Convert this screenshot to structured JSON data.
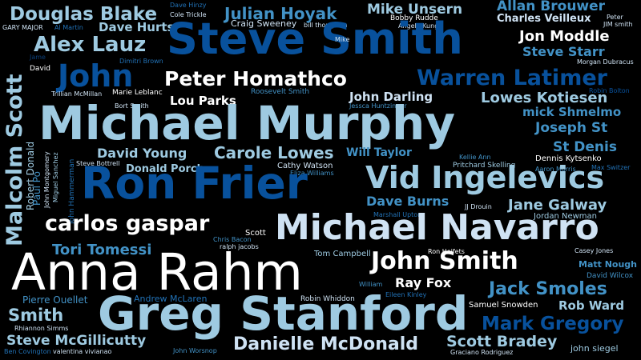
{
  "words": {
    "douglas_blake": "Douglas Blake",
    "dave_hinzy": "Dave Hinzy",
    "cole_trickle": "Cole Trickle",
    "julian_hoyak": "Julian Hoyak",
    "mike_unsern": "Mike Unsern",
    "allan_brouwer": "Allan Brouwer",
    "charles_veilleux": "Charles Veilleux",
    "peter": "Peter",
    "jim_smith": "JIM smith",
    "gary_major": "GARY MAJOR",
    "al_martin": "Al Martin",
    "dave_hurts": "Dave Hurts",
    "craig_sweeney": "Craig Sweeney",
    "bill_thompson": "bill thompson",
    "bobby_rudde": "Bobby Rudde",
    "angela_kung": "Angela Kung",
    "steve_smith": "Steve Smith",
    "jon_moddle": "Jon Moddle",
    "mike": "Mike",
    "alex_lauz": "Alex Lauz",
    "steve_starr": "Steve Starr",
    "morgan_dubracus": "Morgan Dubracus",
    "jame": "Jame",
    "dimitri_brown": "Dimitri Brown",
    "david": "David",
    "john": "John",
    "peter_homathco": "Peter Homathco",
    "warren_latimer": "Warren Latimer",
    "malcolm_scott": "Malcolm Scott",
    "trillian_mcmillan": "Trillian McMillan",
    "marie_leblanc": "Marie Leblanc",
    "roosevelt_smith": "Roosevelt Smith",
    "robin_bolton": "Robin Bolton",
    "lou_parks": "Lou Parks",
    "john_darling": "John Darling",
    "jessca_huntzinger": "Jessca Huntzinger",
    "lowes_kotiesen": "Lowes Kotiesen",
    "bort_smith": "Bort Smith",
    "mick_shmelmo": "mick Shmelmo",
    "michael_murphy": "Michael Murphy",
    "joseph_st": "Joseph St",
    "st_denis": "St Denis",
    "david_young": "David Young",
    "carole_lowes": "Carole Lowes",
    "will_taylor": "Will Taylor",
    "kellie_ann": "Kellie Ann",
    "dennis_kytsenko": "Dennis Kytsenko",
    "robert_donald": "Robert Donald",
    "john_montgomery": "John Montgomery",
    "miguel_sanchez": "Miguel Sanchez",
    "steve_bottrell": "Steve Bottrell",
    "donald_porch": "Donald Porch",
    "cathy_watson": "Cathy Watson",
    "pritchard_skelling": "Pritchard Skelling",
    "aaron_morris": "Aaron Morris",
    "max_switzer": "Max Switzer",
    "eliza_williams": "Eliza Williams",
    "paul_po": "Paul Po",
    "john_hammerman": "John Hammerman",
    "ron_frier": "Ron Frier",
    "vid_ingelevics": "Vid Ingelevics",
    "dave_burns": "Dave Burns",
    "jj_drouin": "JJ Drouin",
    "jane_galway": "Jane Galway",
    "marshall_upton": "Marshall Upton",
    "jordan_newman": "Jordan Newman",
    "carlos_gaspar": "carlos gaspar",
    "scott": "Scott",
    "chris_bacon": "Chris Bacon",
    "ralph_jacobs": "ralph jacobs",
    "michael_navarro": "Michael Navarro",
    "tori_tomessi": "Tori Tomessi",
    "tom_campbell": "Tom Campbell",
    "ron_heifets": "Ron Heifets",
    "casey_jones": "Casey Jones",
    "anna_rahm": "Anna Rahm",
    "john_smith": "John Smith",
    "matt_nough": "Matt Nough",
    "ray_fox": "Ray Fox",
    "david_wilcox": "David Wilcox",
    "william": "William",
    "jack_smoles": "Jack Smoles",
    "pierre_ouellet": "Pierre Ouellet",
    "andrew_mclaren": "Andrew McLaren",
    "eileen_kinley": "Eileen Kinley",
    "robin_whiddon": "Robin Whiddon",
    "samuel_snowden": "Samuel Snowden",
    "rob_ward": "Rob Ward",
    "greg_stanford": "Greg Stanford",
    "smith": "Smith",
    "mark_gregory": "Mark Gregory",
    "rhiannon_simms": "Rhiannon Simms",
    "steve_mcgillicutty": "Steve McGillicutty",
    "danielle_mcdonald": "Danielle McDonald",
    "scott_bradey": "Scott Bradey",
    "john_siegel": "john siegel",
    "ben_covington": "Ben Covington",
    "valentina_vivianao": "valentina vivianao",
    "john_worsnop": "John Worsnop",
    "graciano_rodriguez": "Graciano Rodriguez"
  }
}
